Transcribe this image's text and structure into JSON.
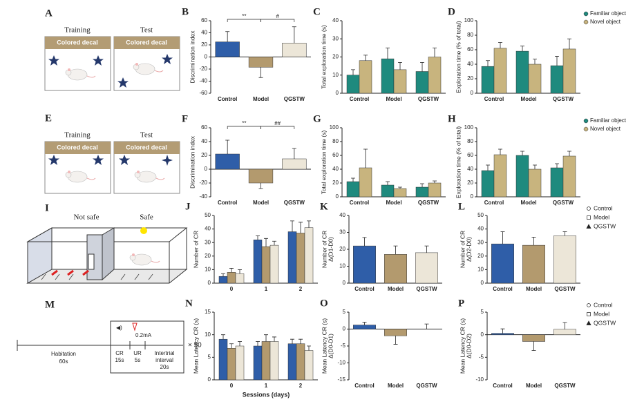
{
  "chart_data": [
    {
      "type": "bar",
      "label": "B",
      "ylabel": [
        "Discrimination index"
      ],
      "categories": [
        "Control",
        "Model",
        "QGSTW"
      ],
      "series": [
        {
          "colors": [
            "#2f5ea8",
            "#b39a6e",
            "#ece6d8"
          ],
          "values": [
            25,
            -17,
            23
          ],
          "errors": [
            17,
            17,
            27
          ]
        }
      ],
      "ylim": [
        -60,
        60
      ],
      "yticks": [
        -60,
        -40,
        -20,
        0,
        20,
        40,
        60
      ],
      "annotations": [
        "**",
        "#"
      ]
    },
    {
      "type": "bar",
      "label": "C",
      "ylabel": [
        "Total exploration time (s)"
      ],
      "categories": [
        "Control",
        "Model",
        "QGSTW"
      ],
      "series": [
        {
          "color": "#1f8a7e",
          "values": [
            10,
            19,
            12
          ],
          "errors": [
            3,
            6,
            5
          ]
        },
        {
          "color": "#c8b47e",
          "values": [
            18,
            13,
            20
          ],
          "errors": [
            3,
            4,
            5
          ]
        }
      ],
      "ylim": [
        0,
        40
      ],
      "yticks": [
        0,
        10,
        20,
        30,
        40
      ]
    },
    {
      "type": "bar",
      "label": "D",
      "ylabel": [
        "Exploration time (% of total)"
      ],
      "categories": [
        "Control",
        "Model",
        "QGSTW"
      ],
      "series": [
        {
          "name": "Familiar object",
          "color": "#1f8a7e",
          "values": [
            37,
            58,
            38
          ],
          "errors": [
            8,
            7,
            13
          ]
        },
        {
          "name": "Novel object",
          "color": "#c8b47e",
          "values": [
            62,
            40,
            61
          ],
          "errors": [
            8,
            7,
            14
          ]
        }
      ],
      "ylim": [
        0,
        100
      ],
      "yticks": [
        0,
        20,
        40,
        60,
        80,
        100
      ]
    },
    {
      "type": "bar",
      "label": "F",
      "ylabel": [
        "Discrimination index"
      ],
      "categories": [
        "Control",
        "Model",
        "QGSTW"
      ],
      "series": [
        {
          "colors": [
            "#2f5ea8",
            "#b39a6e",
            "#ece6d8"
          ],
          "values": [
            22,
            -20,
            15
          ],
          "errors": [
            20,
            8,
            15
          ]
        }
      ],
      "ylim": [
        -40,
        60
      ],
      "yticks": [
        -40,
        -20,
        0,
        20,
        40,
        60
      ],
      "annotations": [
        "**",
        "##"
      ]
    },
    {
      "type": "bar",
      "label": "G",
      "ylabel": [
        "Total exploration time (s)"
      ],
      "categories": [
        "Control",
        "Model",
        "QGSTW"
      ],
      "series": [
        {
          "color": "#1f8a7e",
          "values": [
            22,
            17,
            14
          ],
          "errors": [
            5,
            5,
            5
          ]
        },
        {
          "color": "#c8b47e",
          "values": [
            42,
            12,
            20
          ],
          "errors": [
            27,
            2,
            3
          ]
        }
      ],
      "ylim": [
        0,
        100
      ],
      "yticks": [
        0,
        20,
        40,
        60,
        80,
        100
      ]
    },
    {
      "type": "bar",
      "label": "H",
      "ylabel": [
        "Exploration time (% of total)"
      ],
      "categories": [
        "Control",
        "Model",
        "QGSTW"
      ],
      "series": [
        {
          "name": "Familiar object",
          "color": "#1f8a7e",
          "values": [
            38,
            60,
            42
          ],
          "errors": [
            8,
            6,
            6
          ]
        },
        {
          "name": "Novel object",
          "color": "#c8b47e",
          "values": [
            61,
            40,
            59
          ],
          "errors": [
            8,
            6,
            7
          ]
        }
      ],
      "ylim": [
        0,
        100
      ],
      "yticks": [
        0,
        20,
        40,
        60,
        80,
        100
      ]
    },
    {
      "type": "bar",
      "label": "J",
      "ylabel": [
        "Number of CR"
      ],
      "categories": [
        "0",
        "1",
        "2"
      ],
      "series": [
        {
          "color": "#2f5ea8",
          "values": [
            5,
            32,
            38
          ],
          "errors": [
            2,
            3,
            8
          ]
        },
        {
          "color": "#b39a6e",
          "values": [
            8,
            27,
            37
          ],
          "errors": [
            3,
            6,
            8
          ]
        },
        {
          "color": "#ece6d8",
          "values": [
            7,
            28,
            41
          ],
          "errors": [
            3,
            3,
            5
          ]
        }
      ],
      "ylim": [
        0,
        50
      ],
      "yticks": [
        0,
        10,
        20,
        30,
        40,
        50
      ]
    },
    {
      "type": "bar",
      "label": "K",
      "ylabel": [
        "Number of CR",
        "Δ(D1-D0)"
      ],
      "categories": [
        "Control",
        "Model",
        "QGSTW"
      ],
      "series": [
        {
          "colors": [
            "#2f5ea8",
            "#b39a6e",
            "#ece6d8"
          ],
          "values": [
            22,
            17,
            18
          ],
          "errors": [
            5,
            5,
            4
          ]
        }
      ],
      "ylim": [
        0,
        40
      ],
      "yticks": [
        0,
        10,
        20,
        30,
        40
      ]
    },
    {
      "type": "bar",
      "label": "L",
      "ylabel": [
        "Number of CR",
        "Δ(D2-D0)"
      ],
      "categories": [
        "Control",
        "Model",
        "QGSTW"
      ],
      "series": [
        {
          "colors": [
            "#2f5ea8",
            "#b39a6e",
            "#ece6d8"
          ],
          "values": [
            29,
            28,
            35
          ],
          "errors": [
            9,
            6,
            3
          ]
        }
      ],
      "ylim": [
        0,
        50
      ],
      "yticks": [
        0,
        10,
        20,
        30,
        40,
        50
      ],
      "legend": [
        "Control",
        "Model",
        "QGSTW"
      ]
    },
    {
      "type": "bar",
      "label": "N",
      "ylabel": [
        "Mean Latency CR (s)"
      ],
      "xlabel": "Sessions (days)",
      "categories": [
        "0",
        "1",
        "2"
      ],
      "series": [
        {
          "color": "#2f5ea8",
          "values": [
            9,
            7.5,
            8
          ],
          "errors": [
            1,
            1,
            1
          ]
        },
        {
          "color": "#b39a6e",
          "values": [
            7,
            8.5,
            8
          ],
          "errors": [
            1,
            1.5,
            1
          ]
        },
        {
          "color": "#ece6d8",
          "values": [
            7.5,
            8.5,
            6.5
          ],
          "errors": [
            1,
            1,
            1
          ]
        }
      ],
      "ylim": [
        0,
        15
      ],
      "yticks": [
        0,
        5,
        10,
        15
      ]
    },
    {
      "type": "bar",
      "label": "O",
      "ylabel": [
        "Mean Latency CR (s)",
        "Δ(D0-D1)"
      ],
      "categories": [
        "Control",
        "Model",
        "QGSTW"
      ],
      "series": [
        {
          "colors": [
            "#2f5ea8",
            "#b39a6e",
            "#ece6d8"
          ],
          "values": [
            1.2,
            -2,
            0
          ],
          "errors": [
            0.8,
            2.5,
            1.5
          ]
        }
      ],
      "ylim": [
        -15,
        5
      ],
      "yticks": [
        -15,
        -10,
        -5,
        0,
        5
      ]
    },
    {
      "type": "bar",
      "label": "P",
      "ylabel": [
        "Mean Latency CR (s)",
        "Δ(D0-D2)"
      ],
      "categories": [
        "Control",
        "Model",
        "QGSTW"
      ],
      "series": [
        {
          "colors": [
            "#2f5ea8",
            "#b39a6e",
            "#ece6d8"
          ],
          "values": [
            0.3,
            -1.5,
            1.2
          ],
          "errors": [
            1,
            2,
            1.5
          ]
        }
      ],
      "ylim": [
        -10,
        5
      ],
      "yticks": [
        -10,
        -5,
        0,
        5
      ],
      "legend": [
        "Control",
        "Model",
        "QGSTW"
      ]
    }
  ],
  "diagrams": {
    "A": {
      "label": "A",
      "training": "Training",
      "test": "Test",
      "decal": [
        "Colored decal",
        "Colored decal"
      ]
    },
    "E": {
      "label": "E",
      "training": "Training",
      "test": "Test",
      "decal": [
        "Colored decal",
        "Colored decal"
      ]
    },
    "I": {
      "label": "I",
      "not_safe": "Not safe",
      "safe": "Safe"
    },
    "M": {
      "label": "M",
      "habitation": "Habitation",
      "habitation_time": "60s",
      "current": "0.2mA",
      "cr": "CR",
      "cr_time": "15s",
      "ur": "UR",
      "ur_time": "5s",
      "intertrial": [
        "Intertrial",
        "interval",
        "20s"
      ],
      "repeat": "× 50"
    }
  }
}
